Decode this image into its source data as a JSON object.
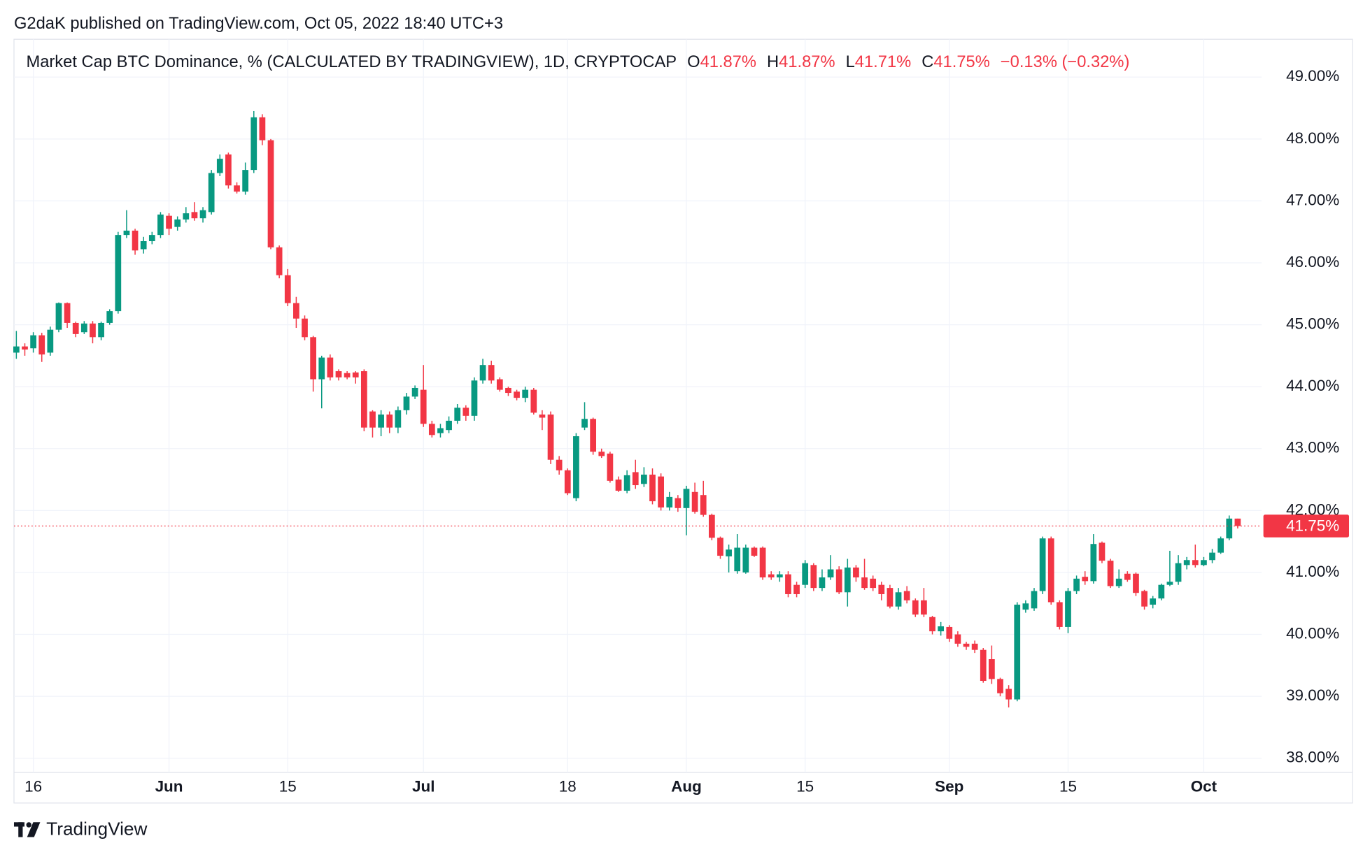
{
  "chart_data": {
    "type": "candlestick",
    "header": "G2daK published on TradingView.com, Oct 05, 2022 18:40 UTC+3",
    "legend": {
      "symbol": "Market Cap BTC Dominance, % (CALCULATED BY TRADINGVIEW), 1D, CRYPTOCAP",
      "o_key": "O",
      "o": "41.87%",
      "h_key": "H",
      "h": "41.87%",
      "l_key": "L",
      "l": "41.71%",
      "c_key": "C",
      "c": "41.75%",
      "change": "−0.13% (−0.32%)"
    },
    "footer": "TradingView",
    "up_color": "#089981",
    "down_color": "#f23645",
    "grid": true,
    "last_price": {
      "value": 41.75,
      "label": "41.75%"
    },
    "xlim": [
      "2022-05-13",
      "2022-10-07"
    ],
    "xticks": [
      {
        "value": "2022-05-16",
        "label": "16"
      },
      {
        "value": "2022-06-01",
        "label": "Jun"
      },
      {
        "value": "2022-06-15",
        "label": "15"
      },
      {
        "value": "2022-07-01",
        "label": "Jul"
      },
      {
        "value": "2022-07-18",
        "label": "18"
      },
      {
        "value": "2022-08-01",
        "label": "Aug"
      },
      {
        "value": "2022-08-15",
        "label": "15"
      },
      {
        "value": "2022-09-01",
        "label": "Sep"
      },
      {
        "value": "2022-09-15",
        "label": "15"
      },
      {
        "value": "2022-10-01",
        "label": "Oct"
      }
    ],
    "ylim": [
      37.77,
      49.61
    ],
    "yticks": [
      {
        "value": 38,
        "label": "38.00%"
      },
      {
        "value": 39,
        "label": "39.00%"
      },
      {
        "value": 40,
        "label": "40.00%"
      },
      {
        "value": 41,
        "label": "41.00%"
      },
      {
        "value": 42,
        "label": "42.00%"
      },
      {
        "value": 43,
        "label": "43.00%"
      },
      {
        "value": 44,
        "label": "44.00%"
      },
      {
        "value": 45,
        "label": "45.00%"
      },
      {
        "value": 46,
        "label": "46.00%"
      },
      {
        "value": 47,
        "label": "47.00%"
      },
      {
        "value": 48,
        "label": "48.00%"
      },
      {
        "value": 49,
        "label": "49.00%"
      }
    ],
    "start": "2022-05-14",
    "open": [
      44.55,
      44.65,
      44.62,
      44.83,
      44.55,
      44.92,
      45.35,
      45.03,
      44.88,
      45.02,
      44.8,
      45.03,
      45.22,
      46.45,
      46.52,
      46.22,
      46.35,
      46.45,
      46.76,
      46.58,
      46.7,
      46.82,
      46.72,
      46.82,
      47.45,
      47.75,
      47.25,
      47.15,
      47.5,
      48.35,
      47.98,
      46.25,
      45.8,
      45.35,
      45.1,
      44.8,
      44.12,
      44.47,
      44.25,
      44.22,
      44.23,
      44.25,
      43.6,
      43.34,
      43.55,
      43.34,
      43.62,
      43.84,
      43.95,
      43.4,
      43.25,
      43.3,
      43.45,
      43.66,
      43.53,
      44.1,
      44.35,
      44.12,
      43.98,
      43.92,
      43.82,
      43.95,
      43.55,
      43.55,
      42.82,
      42.65,
      42.2,
      43.34,
      43.48,
      42.95,
      42.92,
      42.5,
      42.32,
      42.62,
      42.43,
      42.58,
      42.55,
      42.05,
      42.2,
      42.04,
      42.3,
      42.25,
      41.93,
      41.56,
      41.26,
      41.02,
      41.0,
      41.4,
      41.4,
      40.97,
      40.92,
      40.97,
      40.8,
      40.8,
      41.12,
      40.75,
      40.92,
      41.05,
      40.68,
      41.08,
      40.92,
      40.9,
      40.8,
      40.75,
      40.45,
      40.7,
      40.55,
      40.55,
      40.28,
      40.05,
      40.12,
      40.0,
      39.85,
      39.85,
      39.75,
      39.6,
      39.28,
      39.12,
      38.95,
      40.4,
      40.42,
      40.7,
      41.55,
      40.52,
      40.12,
      40.7,
      40.93,
      40.86,
      41.48,
      41.19,
      40.78,
      40.98,
      40.98,
      40.7,
      40.48,
      40.58,
      40.8,
      40.85,
      41.12,
      41.2,
      41.12,
      41.2,
      41.32,
      41.55,
      41.87
    ],
    "high": [
      44.9,
      44.7,
      44.88,
      44.87,
      44.97,
      45.36,
      45.36,
      45.05,
      45.06,
      45.06,
      45.05,
      45.25,
      46.5,
      46.85,
      46.55,
      46.42,
      46.5,
      46.82,
      46.8,
      46.75,
      46.9,
      46.98,
      46.9,
      47.5,
      47.75,
      47.78,
      47.3,
      47.62,
      48.45,
      48.4,
      48.0,
      46.28,
      45.9,
      45.45,
      45.15,
      44.82,
      44.5,
      44.52,
      44.28,
      44.25,
      44.25,
      44.28,
      43.62,
      43.62,
      43.6,
      43.68,
      43.9,
      44.02,
      44.35,
      43.45,
      43.4,
      43.52,
      43.72,
      43.7,
      44.15,
      44.45,
      44.42,
      44.15,
      44.0,
      43.95,
      44.0,
      43.98,
      43.62,
      43.6,
      42.88,
      42.68,
      43.25,
      43.75,
      43.5,
      43.0,
      42.95,
      42.55,
      42.65,
      42.82,
      42.7,
      42.68,
      42.6,
      42.3,
      42.25,
      42.4,
      42.45,
      42.48,
      41.95,
      41.58,
      41.45,
      41.62,
      41.45,
      41.42,
      41.42,
      41.02,
      41.02,
      41.02,
      40.85,
      41.2,
      41.15,
      41.05,
      41.28,
      41.1,
      41.22,
      41.12,
      41.22,
      40.95,
      40.85,
      40.8,
      40.75,
      40.78,
      40.58,
      40.75,
      40.3,
      40.2,
      40.15,
      40.05,
      39.88,
      39.9,
      39.78,
      39.82,
      39.3,
      39.18,
      40.52,
      40.55,
      40.75,
      41.58,
      41.58,
      40.55,
      40.75,
      40.95,
      41.02,
      41.62,
      41.5,
      41.22,
      41.05,
      41.02,
      41.0,
      40.72,
      40.62,
      40.82,
      41.35,
      41.28,
      41.25,
      41.45,
      41.25,
      41.38,
      41.58,
      41.92,
      41.87
    ],
    "low": [
      44.45,
      44.5,
      44.55,
      44.4,
      44.5,
      44.88,
      44.95,
      44.8,
      44.85,
      44.7,
      44.75,
      45.0,
      45.18,
      46.4,
      46.13,
      46.15,
      46.3,
      46.4,
      46.45,
      46.52,
      46.65,
      46.68,
      46.65,
      46.78,
      47.4,
      47.2,
      47.12,
      47.1,
      47.45,
      47.9,
      46.22,
      45.75,
      45.3,
      44.95,
      44.75,
      43.92,
      43.65,
      44.1,
      44.1,
      44.12,
      44.05,
      43.28,
      43.18,
      43.2,
      43.25,
      43.25,
      43.55,
      43.8,
      43.35,
      43.18,
      43.18,
      43.25,
      43.4,
      43.45,
      43.45,
      44.05,
      44.05,
      43.92,
      43.85,
      43.78,
      43.75,
      43.55,
      43.3,
      42.75,
      42.58,
      42.25,
      42.15,
      43.3,
      42.9,
      42.85,
      42.45,
      42.3,
      42.28,
      42.35,
      42.38,
      42.1,
      42.0,
      42.0,
      41.98,
      41.6,
      41.95,
      41.9,
      41.52,
      41.22,
      41.0,
      40.98,
      40.98,
      41.25,
      40.88,
      40.88,
      40.85,
      40.6,
      40.6,
      40.75,
      40.7,
      40.7,
      40.88,
      40.65,
      40.45,
      40.85,
      40.72,
      40.7,
      40.55,
      40.42,
      40.4,
      40.5,
      40.28,
      40.28,
      40.0,
      39.98,
      39.88,
      39.8,
      39.75,
      39.7,
      39.22,
      39.2,
      39.0,
      38.82,
      38.92,
      40.35,
      40.38,
      40.65,
      40.48,
      40.08,
      40.02,
      40.65,
      40.8,
      40.82,
      41.15,
      40.75,
      40.75,
      40.85,
      40.62,
      40.4,
      40.42,
      40.55,
      40.78,
      40.8,
      41.05,
      41.08,
      41.1,
      41.15,
      41.3,
      41.52,
      41.71
    ],
    "close": [
      44.65,
      44.6,
      44.83,
      44.52,
      44.92,
      45.35,
      45.03,
      44.85,
      45.02,
      44.8,
      45.03,
      45.22,
      46.45,
      46.52,
      46.2,
      46.35,
      46.45,
      46.78,
      46.55,
      46.7,
      46.8,
      46.72,
      46.85,
      47.45,
      47.68,
      47.25,
      47.15,
      47.5,
      48.35,
      47.98,
      46.25,
      45.8,
      45.35,
      45.1,
      44.8,
      44.12,
      44.47,
      44.15,
      44.15,
      44.15,
      44.15,
      43.34,
      43.34,
      43.55,
      43.34,
      43.62,
      43.84,
      43.98,
      43.4,
      43.22,
      43.33,
      43.45,
      43.66,
      43.53,
      44.1,
      44.35,
      44.1,
      43.95,
      43.9,
      43.82,
      43.95,
      43.58,
      43.5,
      42.82,
      42.65,
      42.28,
      43.2,
      43.48,
      42.95,
      42.88,
      42.48,
      42.32,
      42.57,
      42.41,
      42.58,
      42.15,
      42.05,
      42.22,
      42.04,
      42.35,
      41.98,
      41.93,
      41.56,
      41.27,
      41.37,
      41.4,
      41.4,
      41.27,
      40.92,
      40.92,
      40.97,
      40.65,
      40.65,
      41.15,
      40.75,
      40.92,
      41.05,
      40.68,
      41.08,
      40.92,
      40.75,
      40.75,
      40.65,
      40.45,
      40.68,
      40.55,
      40.32,
      40.32,
      40.05,
      40.13,
      39.93,
      39.85,
      39.8,
      39.75,
      39.25,
      39.28,
      39.05,
      38.95,
      40.48,
      40.5,
      40.7,
      41.55,
      40.52,
      40.12,
      40.7,
      40.9,
      40.86,
      41.46,
      41.19,
      40.78,
      40.9,
      40.88,
      40.67,
      40.45,
      40.58,
      40.8,
      40.85,
      41.15,
      41.2,
      41.12,
      41.2,
      41.32,
      41.55,
      41.87,
      41.75
    ]
  }
}
